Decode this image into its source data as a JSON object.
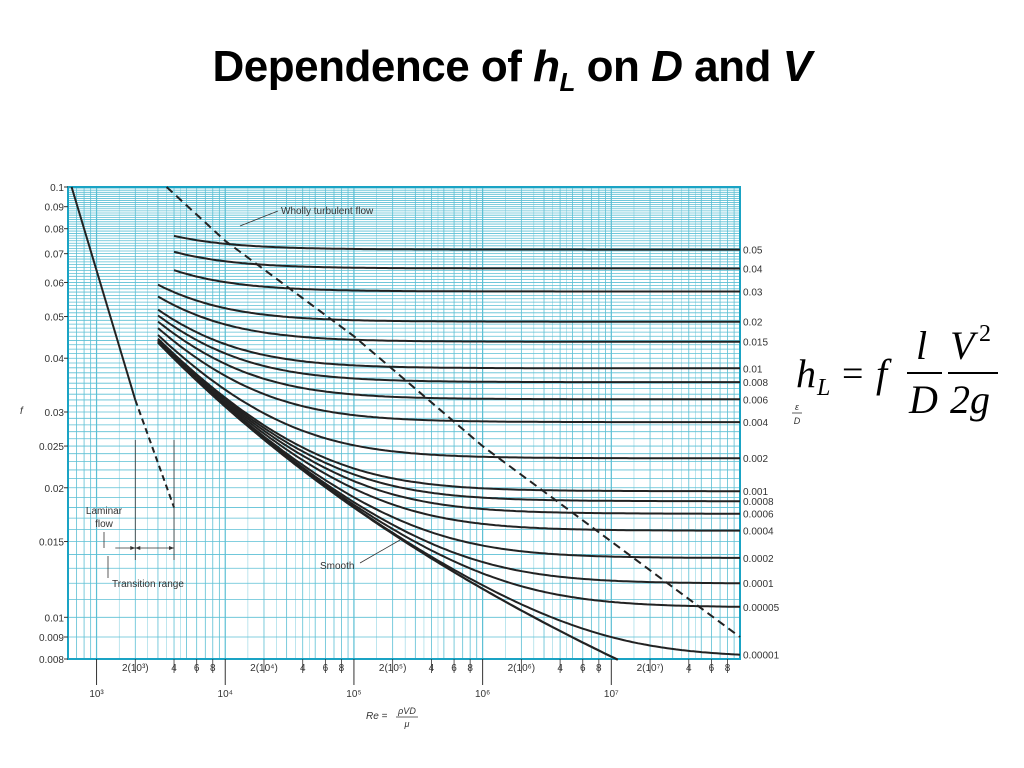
{
  "title": {
    "part1": "Dependence of ",
    "h": "h",
    "sub": "L",
    "part2": " on ",
    "d": "D",
    "part3": " and ",
    "v": "V"
  },
  "formula": {
    "h": "h",
    "sub": "L",
    "eq": "=",
    "f": "f",
    "l": "l",
    "D": "D",
    "V": "V",
    "exp": "2",
    "two_g": "2g"
  },
  "chart_data": {
    "type": "line",
    "title": "",
    "xlabel": "Re = ρVD/μ",
    "ylabel": "f",
    "right_axis_label": "ε/D",
    "xscale": "log",
    "yscale": "log",
    "xlim": [
      600,
      100000000
    ],
    "ylim": [
      0.008,
      0.1
    ],
    "x_major_ticks": [
      {
        "value": 1000,
        "label": "10³"
      },
      {
        "value": 10000,
        "label": "10⁴"
      },
      {
        "value": 100000,
        "label": "10⁵"
      },
      {
        "value": 1000000,
        "label": "10⁶"
      },
      {
        "value": 10000000,
        "label": "10⁷"
      }
    ],
    "x_minor_tick_labels": [
      {
        "value": 2000,
        "label": "2(10³)"
      },
      {
        "value": 4000,
        "label": "4"
      },
      {
        "value": 6000,
        "label": "6"
      },
      {
        "value": 8000,
        "label": "8"
      },
      {
        "value": 20000,
        "label": "2(10⁴)"
      },
      {
        "value": 40000,
        "label": "4"
      },
      {
        "value": 60000,
        "label": "6"
      },
      {
        "value": 80000,
        "label": "8"
      },
      {
        "value": 200000,
        "label": "2(10⁵)"
      },
      {
        "value": 400000,
        "label": "4"
      },
      {
        "value": 600000,
        "label": "6"
      },
      {
        "value": 800000,
        "label": "8"
      },
      {
        "value": 2000000,
        "label": "2(10⁶)"
      },
      {
        "value": 4000000,
        "label": "4"
      },
      {
        "value": 6000000,
        "label": "6"
      },
      {
        "value": 8000000,
        "label": "8"
      },
      {
        "value": 20000000,
        "label": "2(10⁷)"
      },
      {
        "value": 40000000,
        "label": "4"
      },
      {
        "value": 60000000,
        "label": "6"
      },
      {
        "value": 80000000,
        "label": "8"
      }
    ],
    "y_ticks": [
      {
        "value": 0.1,
        "label": "0.1"
      },
      {
        "value": 0.09,
        "label": "0.09"
      },
      {
        "value": 0.08,
        "label": "0.08"
      },
      {
        "value": 0.07,
        "label": "0.07"
      },
      {
        "value": 0.06,
        "label": "0.06"
      },
      {
        "value": 0.05,
        "label": "0.05"
      },
      {
        "value": 0.04,
        "label": "0.04"
      },
      {
        "value": 0.03,
        "label": "0.03"
      },
      {
        "value": 0.025,
        "label": "0.025"
      },
      {
        "value": 0.02,
        "label": "0.02"
      },
      {
        "value": 0.015,
        "label": "0.015"
      },
      {
        "value": 0.01,
        "label": "0.01"
      },
      {
        "value": 0.009,
        "label": "0.009"
      },
      {
        "value": 0.008,
        "label": "0.008"
      }
    ],
    "roughness_labels": [
      "0.05",
      "0.04",
      "0.03",
      "0.02",
      "0.015",
      "0.01",
      "0.008",
      "0.006",
      "0.004",
      "0.002",
      "0.001",
      "0.0008",
      "0.0006",
      "0.0004",
      "0.0002",
      "0.0001",
      "0.00005",
      "0.00001"
    ],
    "roughness_values": [
      0.05,
      0.04,
      0.03,
      0.02,
      0.015,
      0.01,
      0.008,
      0.006,
      0.004,
      0.002,
      0.001,
      0.0008,
      0.0006,
      0.0004,
      0.0002,
      0.0001,
      5e-05,
      1e-05
    ],
    "curve_re_range": [
      3000,
      100000000
    ],
    "series_color": "#222222",
    "laminar": {
      "x": [
        640,
        2000
      ],
      "y": [
        0.1,
        0.032
      ]
    },
    "laminar_dashed": {
      "x": [
        2000,
        4000
      ],
      "y": [
        0.032,
        0.018
      ]
    },
    "wholly_turbulent_boundary_dashed": {
      "x": [
        3500,
        10000,
        100000,
        1000000,
        10000000,
        100000000
      ],
      "y": [
        0.1,
        0.075,
        0.045,
        0.025,
        0.015,
        0.009
      ]
    },
    "annotations": {
      "wholly_turbulent": "Wholly turbulent flow",
      "laminar": "Laminar",
      "laminar2": "flow",
      "transition": "Transition range",
      "smooth": "Smooth"
    },
    "grid": true,
    "grid_color": "#5bbfd4",
    "frame_color": "#1aa3c4"
  }
}
